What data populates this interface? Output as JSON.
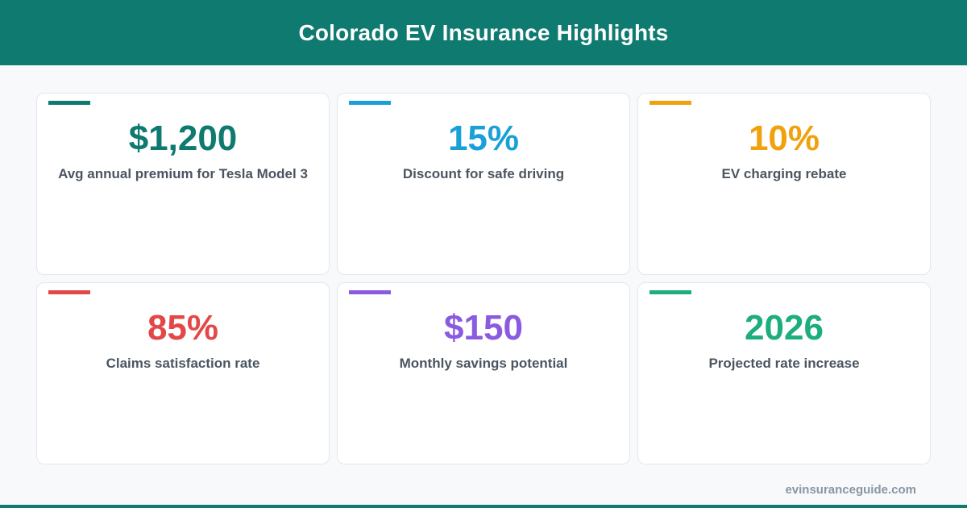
{
  "header": {
    "title": "Colorado EV Insurance Highlights",
    "background": "#0f7a70"
  },
  "cards": [
    {
      "value": "$1,200",
      "label": "Avg annual premium for Tesla Model 3",
      "color": "#0f7a70"
    },
    {
      "value": "15%",
      "label": "Discount for safe driving",
      "color": "#1aa0d8"
    },
    {
      "value": "10%",
      "label": "EV charging rebate",
      "color": "#f0a20e"
    },
    {
      "value": "85%",
      "label": "Claims satisfaction rate",
      "color": "#e34848"
    },
    {
      "value": "$150",
      "label": "Monthly savings potential",
      "color": "#8a5be0"
    },
    {
      "value": "2026",
      "label": "Projected rate increase",
      "color": "#1cae7c"
    }
  ],
  "footer": {
    "site": "evinsuranceguide.com",
    "bar_color": "#0f7a70"
  }
}
